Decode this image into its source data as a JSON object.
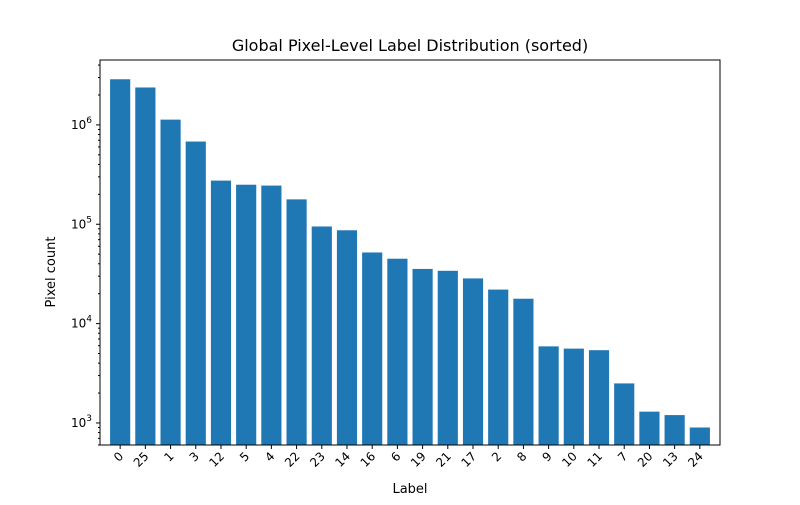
{
  "chart_data": {
    "type": "bar",
    "title": "Global Pixel-Level Label Distribution (sorted)",
    "xlabel": "Label",
    "ylabel": "Pixel count",
    "yscale": "log",
    "ylim": [
      600,
      4500000
    ],
    "grid": false,
    "legend": "none",
    "bar_color": "#1f77b4",
    "categories": [
      "0",
      "25",
      "1",
      "3",
      "12",
      "5",
      "4",
      "22",
      "23",
      "14",
      "16",
      "6",
      "19",
      "21",
      "17",
      "2",
      "8",
      "9",
      "10",
      "11",
      "7",
      "20",
      "13",
      "24"
    ],
    "values": [
      2880000,
      2380000,
      1130000,
      680000,
      275000,
      250000,
      245000,
      178000,
      95000,
      87000,
      52000,
      45000,
      35500,
      34000,
      28500,
      22000,
      17800,
      5900,
      5600,
      5400,
      2500,
      1300,
      1200,
      900
    ],
    "y_ticks": [
      {
        "value": 1000,
        "base": "10",
        "exp": "3"
      },
      {
        "value": 10000,
        "base": "10",
        "exp": "4"
      },
      {
        "value": 100000,
        "base": "10",
        "exp": "5"
      },
      {
        "value": 1000000,
        "base": "10",
        "exp": "6"
      }
    ]
  }
}
